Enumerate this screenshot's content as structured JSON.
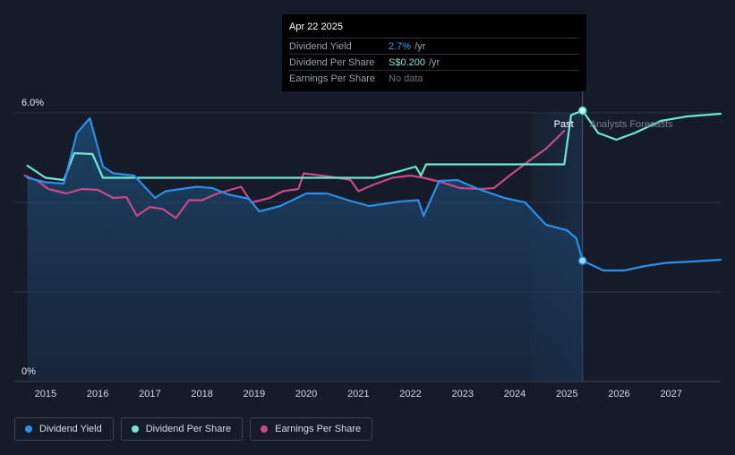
{
  "tooltip": {
    "date": "Apr 22 2025",
    "rows": [
      {
        "label": "Dividend Yield",
        "value": "2.7%",
        "unit": "/yr",
        "color": "#3d9bf0"
      },
      {
        "label": "Dividend Per Share",
        "value": "S$0.200",
        "unit": "/yr",
        "color": "#7fe8d4"
      },
      {
        "label": "Earnings Per Share",
        "value": "No data",
        "unit": "",
        "color": "#6d727c"
      }
    ]
  },
  "legend": [
    {
      "label": "Dividend Yield",
      "color": "#2a8fe8"
    },
    {
      "label": "Dividend Per Share",
      "color": "#6fe8d2"
    },
    {
      "label": "Earnings Per Share",
      "color": "#c8488a"
    }
  ],
  "chart_data": {
    "type": "line",
    "y_ticks": [
      "6.0%",
      "0%"
    ],
    "ylim": [
      0,
      6
    ],
    "xlim": [
      2014.4,
      2027.95
    ],
    "x_ticks": [
      "2015",
      "2016",
      "2017",
      "2018",
      "2019",
      "2020",
      "2021",
      "2022",
      "2023",
      "2024",
      "2025",
      "2026",
      "2027"
    ],
    "past_label": "Past",
    "forecast_label": "Analysts Forecasts",
    "divider_x": 2025.3,
    "series": [
      {
        "name": "Dividend Yield",
        "color": "#2a8fe8",
        "unit": "%",
        "points": [
          [
            2014.65,
            4.55
          ],
          [
            2015.0,
            4.45
          ],
          [
            2015.35,
            4.42
          ],
          [
            2015.6,
            5.55
          ],
          [
            2015.85,
            5.88
          ],
          [
            2016.1,
            4.8
          ],
          [
            2016.3,
            4.65
          ],
          [
            2016.7,
            4.6
          ],
          [
            2017.1,
            4.1
          ],
          [
            2017.3,
            4.25
          ],
          [
            2017.9,
            4.35
          ],
          [
            2018.2,
            4.32
          ],
          [
            2018.5,
            4.18
          ],
          [
            2018.9,
            4.08
          ],
          [
            2019.1,
            3.8
          ],
          [
            2019.5,
            3.92
          ],
          [
            2020.0,
            4.2
          ],
          [
            2020.4,
            4.2
          ],
          [
            2020.8,
            4.05
          ],
          [
            2021.2,
            3.92
          ],
          [
            2021.8,
            4.02
          ],
          [
            2022.15,
            4.05
          ],
          [
            2022.25,
            3.7
          ],
          [
            2022.55,
            4.48
          ],
          [
            2022.9,
            4.5
          ],
          [
            2023.3,
            4.3
          ],
          [
            2023.8,
            4.1
          ],
          [
            2024.2,
            4.0
          ],
          [
            2024.6,
            3.5
          ],
          [
            2025.0,
            3.38
          ],
          [
            2025.18,
            3.2
          ],
          [
            2025.3,
            2.7
          ],
          [
            2025.7,
            2.48
          ],
          [
            2026.1,
            2.48
          ],
          [
            2026.5,
            2.58
          ],
          [
            2026.9,
            2.65
          ],
          [
            2027.4,
            2.68
          ],
          [
            2027.95,
            2.72
          ]
        ]
      },
      {
        "name": "Dividend Per Share",
        "color": "#6fe8d2",
        "unit": "%",
        "points": [
          [
            2014.65,
            4.82
          ],
          [
            2015.0,
            4.55
          ],
          [
            2015.35,
            4.5
          ],
          [
            2015.55,
            5.1
          ],
          [
            2015.9,
            5.08
          ],
          [
            2016.1,
            4.55
          ],
          [
            2016.9,
            4.55
          ],
          [
            2017.3,
            4.55
          ],
          [
            2018.3,
            4.55
          ],
          [
            2019.3,
            4.55
          ],
          [
            2020.3,
            4.55
          ],
          [
            2021.3,
            4.55
          ],
          [
            2021.8,
            4.7
          ],
          [
            2022.1,
            4.8
          ],
          [
            2022.2,
            4.6
          ],
          [
            2022.3,
            4.85
          ],
          [
            2023.3,
            4.85
          ],
          [
            2024.3,
            4.85
          ],
          [
            2024.95,
            4.85
          ],
          [
            2025.08,
            5.95
          ],
          [
            2025.3,
            6.05
          ],
          [
            2025.6,
            5.55
          ],
          [
            2025.95,
            5.4
          ],
          [
            2026.3,
            5.55
          ],
          [
            2026.8,
            5.82
          ],
          [
            2027.3,
            5.92
          ],
          [
            2027.95,
            5.98
          ]
        ]
      },
      {
        "name": "Earnings Per Share",
        "color": "#c8488a",
        "unit": "%",
        "points": [
          [
            2014.6,
            4.6
          ],
          [
            2014.85,
            4.48
          ],
          [
            2015.05,
            4.3
          ],
          [
            2015.4,
            4.2
          ],
          [
            2015.7,
            4.3
          ],
          [
            2016.0,
            4.28
          ],
          [
            2016.3,
            4.1
          ],
          [
            2016.55,
            4.12
          ],
          [
            2016.75,
            3.7
          ],
          [
            2017.0,
            3.9
          ],
          [
            2017.25,
            3.85
          ],
          [
            2017.5,
            3.65
          ],
          [
            2017.75,
            4.05
          ],
          [
            2018.0,
            4.05
          ],
          [
            2018.3,
            4.2
          ],
          [
            2018.75,
            4.35
          ],
          [
            2018.95,
            4.0
          ],
          [
            2019.3,
            4.1
          ],
          [
            2019.55,
            4.25
          ],
          [
            2019.85,
            4.3
          ],
          [
            2019.95,
            4.65
          ],
          [
            2020.3,
            4.6
          ],
          [
            2020.6,
            4.55
          ],
          [
            2020.85,
            4.5
          ],
          [
            2021.0,
            4.25
          ],
          [
            2021.3,
            4.4
          ],
          [
            2021.65,
            4.55
          ],
          [
            2022.0,
            4.6
          ],
          [
            2022.25,
            4.55
          ],
          [
            2022.6,
            4.45
          ],
          [
            2022.95,
            4.32
          ],
          [
            2023.35,
            4.3
          ],
          [
            2023.6,
            4.32
          ],
          [
            2023.9,
            4.6
          ],
          [
            2024.3,
            4.95
          ],
          [
            2024.6,
            5.2
          ],
          [
            2024.95,
            5.6
          ]
        ]
      }
    ]
  }
}
